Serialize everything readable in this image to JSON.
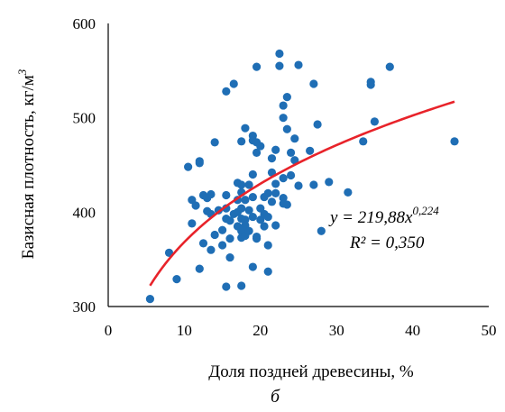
{
  "chart_data": {
    "type": "scatter",
    "xlabel": "Доля поздней древесины, %",
    "ylabel": "Базисная плотность, кг/м",
    "ylabel_sup": "3",
    "panel_label": "б",
    "xlim": [
      0,
      50
    ],
    "ylim": [
      300,
      600
    ],
    "x_ticks": [
      "0",
      "10",
      "20",
      "30",
      "40",
      "50"
    ],
    "y_ticks": [
      "300",
      "400",
      "500",
      "600"
    ],
    "grid": false,
    "point_color": "#1f6eb5",
    "trend_color": "#e8232a",
    "trendline": {
      "type": "power",
      "a": 219.88,
      "b": 0.224,
      "x_range": [
        5.5,
        45.5
      ],
      "equation_prefix": "y = 219,88x",
      "equation_exponent": "0,224",
      "r2_label": "R² = 0,350"
    },
    "points": [
      [
        5.5,
        308
      ],
      [
        8,
        357
      ],
      [
        9,
        329
      ],
      [
        10.5,
        448
      ],
      [
        11,
        388
      ],
      [
        11,
        413
      ],
      [
        11.5,
        407
      ],
      [
        12,
        454
      ],
      [
        12,
        452
      ],
      [
        12,
        340
      ],
      [
        12.5,
        367
      ],
      [
        12.5,
        418
      ],
      [
        13,
        401
      ],
      [
        13,
        415
      ],
      [
        13.5,
        419
      ],
      [
        13.5,
        398
      ],
      [
        13.5,
        360
      ],
      [
        14,
        474
      ],
      [
        14,
        376
      ],
      [
        14.5,
        402
      ],
      [
        15,
        381
      ],
      [
        15,
        365
      ],
      [
        15.5,
        393
      ],
      [
        15.5,
        404
      ],
      [
        15.5,
        418
      ],
      [
        15.5,
        321
      ],
      [
        15.5,
        528
      ],
      [
        16,
        352
      ],
      [
        16,
        372
      ],
      [
        16,
        391
      ],
      [
        16.5,
        398
      ],
      [
        16.5,
        536
      ],
      [
        17,
        431
      ],
      [
        17,
        413
      ],
      [
        17,
        400
      ],
      [
        17,
        385
      ],
      [
        17.5,
        429
      ],
      [
        17.5,
        475
      ],
      [
        17.5,
        421
      ],
      [
        17.5,
        404
      ],
      [
        17.5,
        393
      ],
      [
        17.5,
        380
      ],
      [
        17.5,
        373
      ],
      [
        17.5,
        322
      ],
      [
        18,
        489
      ],
      [
        18,
        392
      ],
      [
        18,
        413
      ],
      [
        18,
        386
      ],
      [
        18,
        375
      ],
      [
        18.5,
        402
      ],
      [
        18.5,
        380
      ],
      [
        18.5,
        429
      ],
      [
        19,
        440
      ],
      [
        19,
        481
      ],
      [
        19,
        416
      ],
      [
        19,
        395
      ],
      [
        19,
        342
      ],
      [
        19,
        476
      ],
      [
        19.5,
        554
      ],
      [
        19.5,
        474
      ],
      [
        19.5,
        463
      ],
      [
        19.5,
        374
      ],
      [
        19.5,
        372
      ],
      [
        20,
        470
      ],
      [
        20,
        404
      ],
      [
        20,
        392
      ],
      [
        20.5,
        398
      ],
      [
        20.5,
        385
      ],
      [
        20.5,
        416
      ],
      [
        21,
        420
      ],
      [
        21,
        337
      ],
      [
        21,
        365
      ],
      [
        21,
        395
      ],
      [
        21.5,
        457
      ],
      [
        21.5,
        442
      ],
      [
        21.5,
        411
      ],
      [
        22,
        466
      ],
      [
        22,
        430
      ],
      [
        22,
        420
      ],
      [
        22,
        386
      ],
      [
        22.5,
        568
      ],
      [
        22.5,
        555
      ],
      [
        23,
        513
      ],
      [
        23,
        500
      ],
      [
        23,
        436
      ],
      [
        23,
        415
      ],
      [
        23,
        409
      ],
      [
        23.5,
        522
      ],
      [
        23.5,
        488
      ],
      [
        23.5,
        408
      ],
      [
        24,
        463
      ],
      [
        24,
        439
      ],
      [
        24.5,
        478
      ],
      [
        24.5,
        455
      ],
      [
        25,
        556
      ],
      [
        25,
        428
      ],
      [
        26.5,
        465
      ],
      [
        27,
        536
      ],
      [
        27,
        429
      ],
      [
        27.5,
        493
      ],
      [
        28,
        380
      ],
      [
        29,
        432
      ],
      [
        31.5,
        421
      ],
      [
        33.5,
        475
      ],
      [
        34.5,
        538
      ],
      [
        34.5,
        535
      ],
      [
        35,
        496
      ],
      [
        37,
        554
      ],
      [
        45.5,
        475
      ]
    ]
  }
}
